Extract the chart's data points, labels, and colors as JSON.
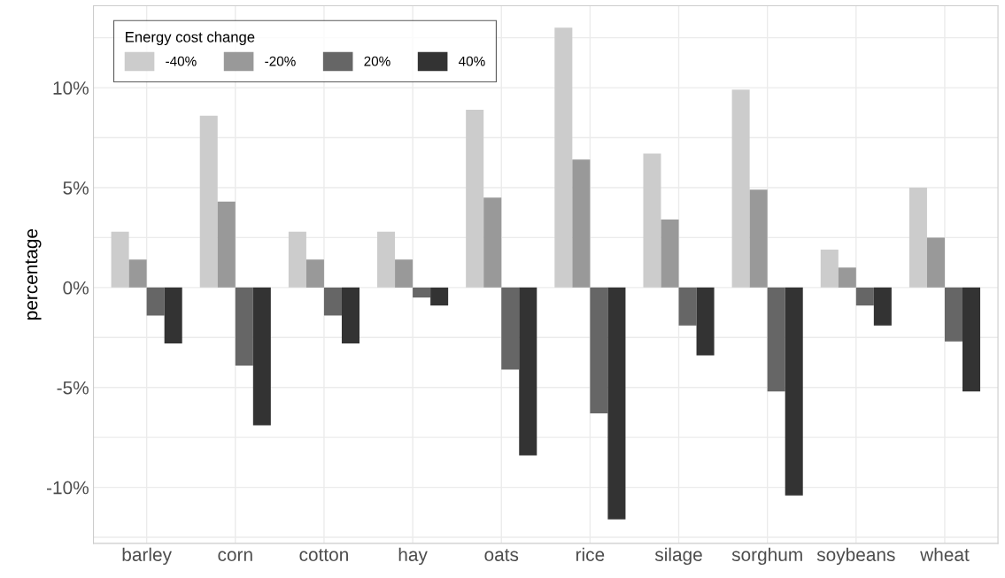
{
  "chart_data": {
    "type": "bar",
    "ylabel": "percentage",
    "legend_title": "Energy cost change",
    "legend": "top left",
    "grid": true,
    "categories": [
      "barley",
      "corn",
      "cotton",
      "hay",
      "oats",
      "rice",
      "silage",
      "sorghum",
      "soybeans",
      "wheat"
    ],
    "series": [
      {
        "name": "-40%",
        "color": "#cccccc",
        "values": [
          2.8,
          8.6,
          2.8,
          2.8,
          8.9,
          13.0,
          6.7,
          9.9,
          1.9,
          5.0
        ]
      },
      {
        "name": "-20%",
        "color": "#999999",
        "values": [
          1.4,
          4.3,
          1.4,
          1.4,
          4.5,
          6.4,
          3.4,
          4.9,
          1.0,
          2.5
        ]
      },
      {
        "name": "20%",
        "color": "#666666",
        "values": [
          -1.4,
          -3.9,
          -1.4,
          -0.5,
          -4.1,
          -6.3,
          -1.9,
          -5.2,
          -0.9,
          -2.7
        ]
      },
      {
        "name": "40%",
        "color": "#333333",
        "values": [
          -2.8,
          -6.9,
          -2.8,
          -0.9,
          -8.4,
          -11.6,
          -3.4,
          -10.4,
          -1.9,
          -5.2
        ]
      }
    ],
    "ylim": [
      -12.8,
      14.1
    ],
    "yticks": [
      {
        "value": -12.5,
        "label": null
      },
      {
        "value": -10,
        "label": "-10%"
      },
      {
        "value": -7.5,
        "label": null
      },
      {
        "value": -5,
        "label": "-5%"
      },
      {
        "value": -2.5,
        "label": null
      },
      {
        "value": 0,
        "label": "0%"
      },
      {
        "value": 2.5,
        "label": null
      },
      {
        "value": 5,
        "label": "5%"
      },
      {
        "value": 7.5,
        "label": null
      },
      {
        "value": 10,
        "label": "10%"
      },
      {
        "value": 12.5,
        "label": null
      }
    ]
  }
}
